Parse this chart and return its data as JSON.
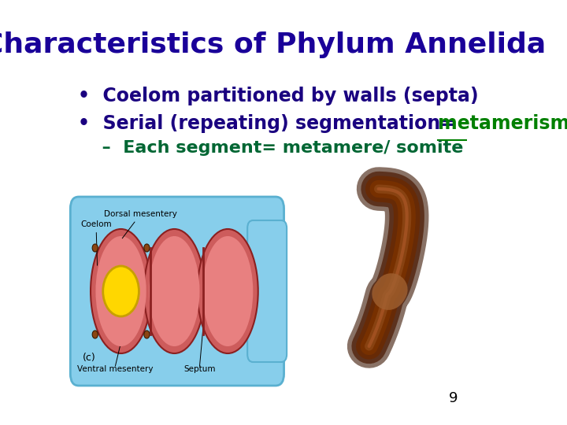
{
  "title": "Characteristics of Phylum Annelida",
  "title_color": "#1a0099",
  "title_fontsize": 26,
  "bullet1": "•  Coelom partitioned by walls (septa)",
  "bullet2_part1": "•  Serial (repeating) segmentation=  ",
  "bullet2_link": "metamerism",
  "bullet3": "  –  Each segment= metamere/ somite",
  "bullet_color": "#1a0080",
  "bullet2_link_color": "#008000",
  "bullet3_color": "#006633",
  "bullet_fontsize": 17,
  "subbullet_fontsize": 16,
  "page_number": "9",
  "background_color": "#ffffff",
  "diagram_label_c": "(c)",
  "diagram_labels": [
    "Coelom",
    "Dorsal mesentery",
    "Ventral mesentery",
    "Septum"
  ],
  "blue_color": "#87CEEB",
  "blue_edge": "#5AB0D0",
  "red_color": "#CD5C5C",
  "red_inner": "#E88080",
  "yellow_color": "#FFD700",
  "brown_color": "#8B4513",
  "worm_dark": "#3A1500",
  "worm_mid": "#6B2800",
  "worm_light": "#8B4513"
}
